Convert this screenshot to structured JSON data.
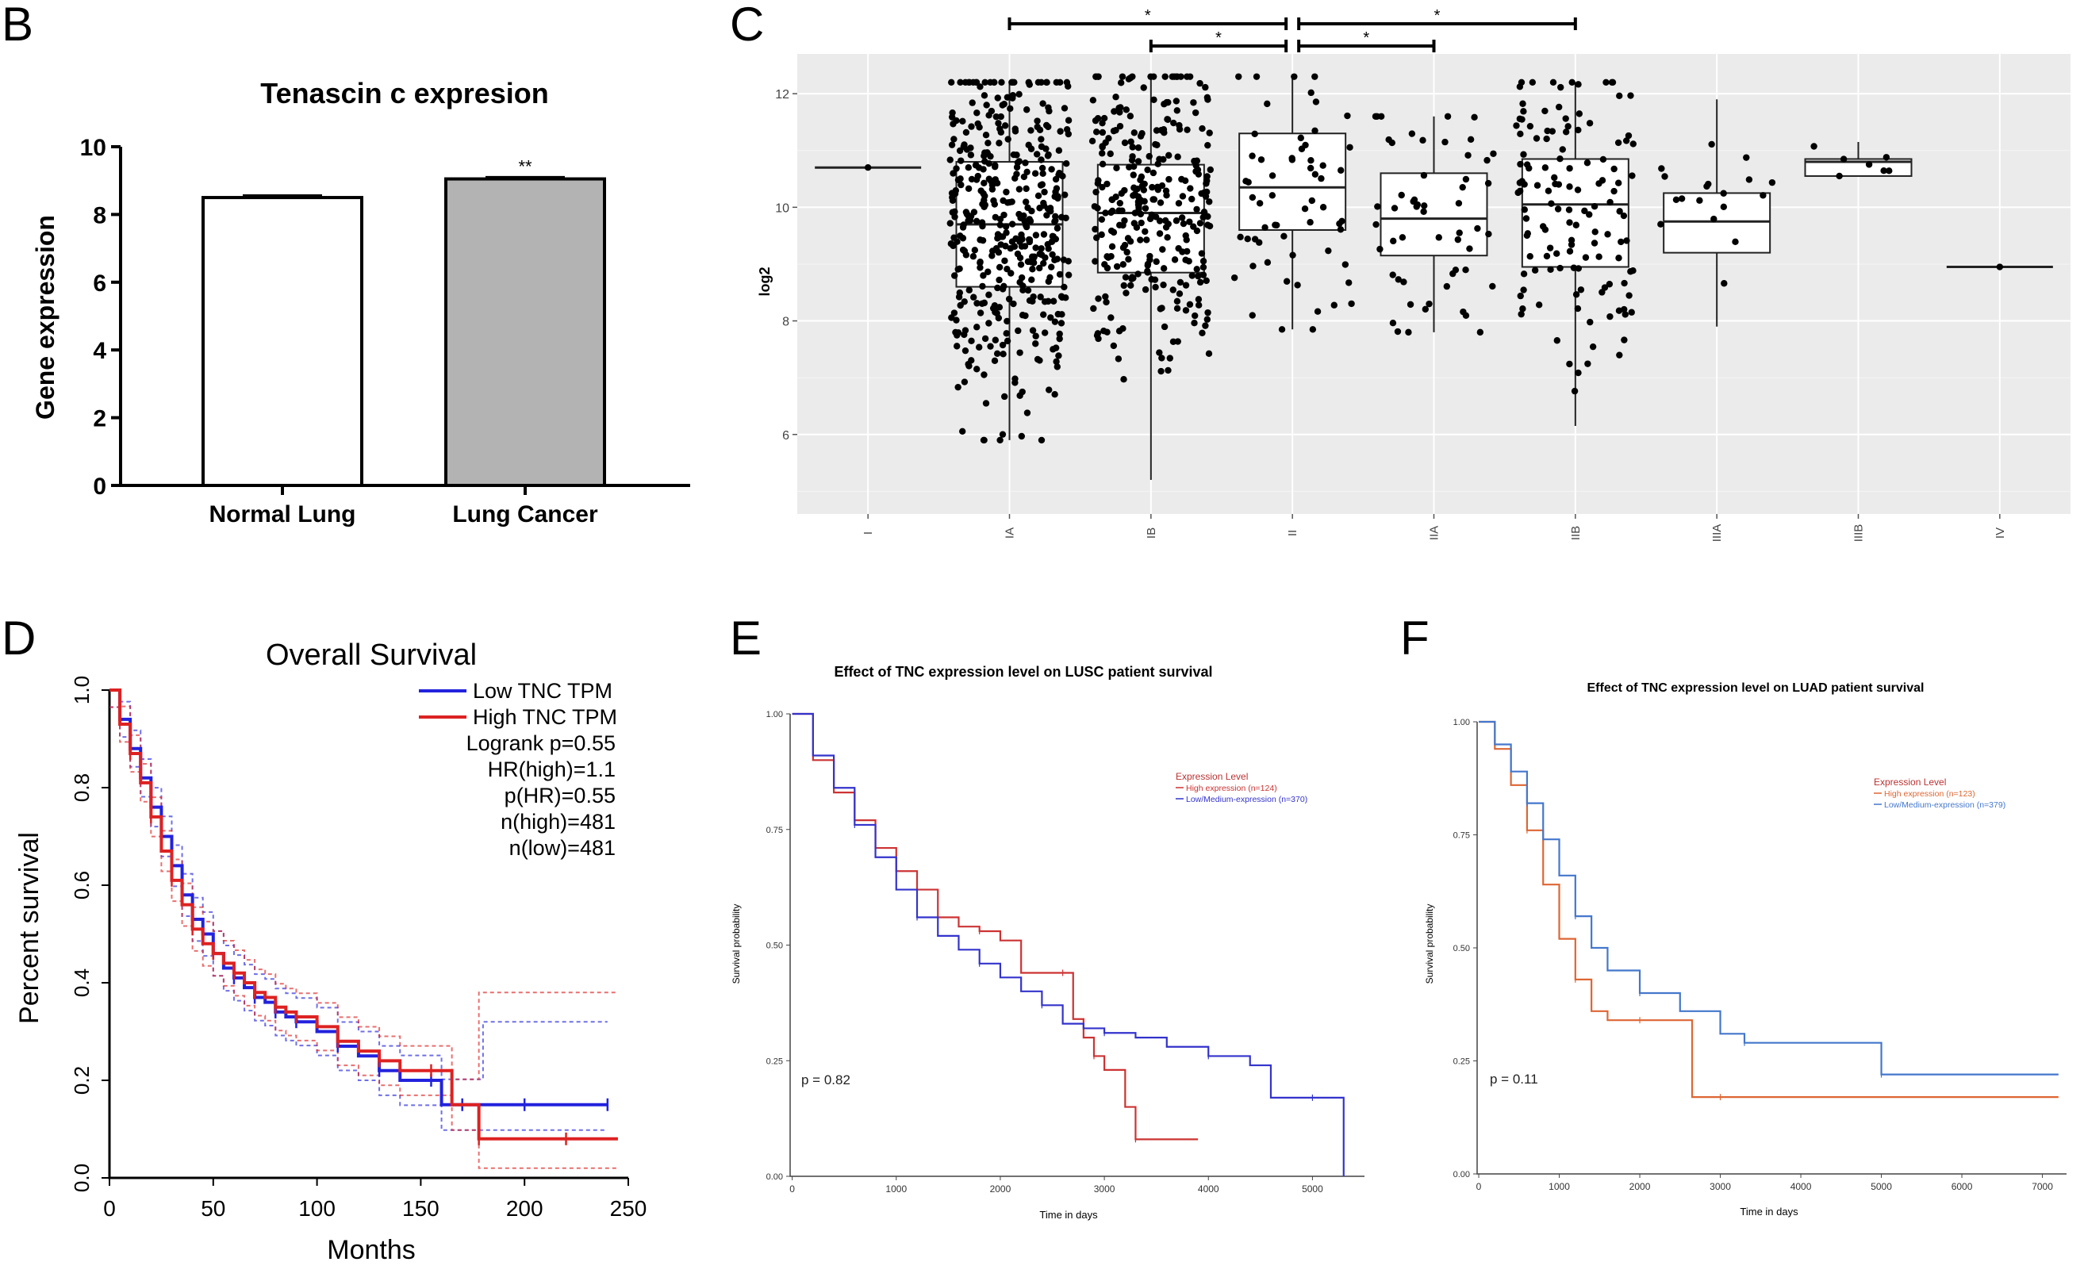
{
  "panel_labels": {
    "B": "B",
    "C": "C",
    "D": "D",
    "E": "E",
    "F": "F"
  },
  "chart_data": [
    {
      "id": "B",
      "type": "bar",
      "title": "Tenascin c expresion",
      "ylabel": "Gene expression",
      "xlabel": "",
      "categories": [
        "Normal Lung",
        "Lung Cancer"
      ],
      "values": [
        8.5,
        9.05
      ],
      "errors": [
        0.06,
        0.05
      ],
      "fills": [
        "#ffffff",
        "#b3b3b3"
      ],
      "annotations": [
        "",
        "**"
      ],
      "yticks": [
        "0",
        "2",
        "4",
        "6",
        "8",
        "10"
      ],
      "ylim": [
        0,
        10
      ]
    },
    {
      "id": "C",
      "type": "box",
      "ylabel": "log2",
      "categories": [
        "I",
        "IA",
        "IB",
        "II",
        "IIA",
        "IIB",
        "IIIA",
        "IIIB",
        "IV"
      ],
      "yticks": [
        "6",
        "8",
        "10",
        "12"
      ],
      "ylim": [
        4.6,
        12.7
      ],
      "boxes": [
        {
          "q1": 10.7,
          "median": 10.7,
          "q3": 10.7,
          "lo": 10.7,
          "hi": 10.7,
          "n": 1
        },
        {
          "q1": 8.6,
          "median": 9.7,
          "q3": 10.8,
          "lo": 5.9,
          "hi": 12.2,
          "n": 420
        },
        {
          "q1": 8.85,
          "median": 9.9,
          "q3": 10.75,
          "lo": 5.2,
          "hi": 12.3,
          "n": 300
        },
        {
          "q1": 9.6,
          "median": 10.35,
          "q3": 11.3,
          "lo": 7.85,
          "hi": 12.3,
          "n": 60
        },
        {
          "q1": 9.15,
          "median": 9.8,
          "q3": 10.6,
          "lo": 7.8,
          "hi": 11.6,
          "n": 55
        },
        {
          "q1": 8.95,
          "median": 10.05,
          "q3": 10.85,
          "lo": 6.15,
          "hi": 12.2,
          "n": 130
        },
        {
          "q1": 9.2,
          "median": 9.75,
          "q3": 10.25,
          "lo": 7.9,
          "hi": 11.9,
          "n": 18
        },
        {
          "q1": 10.55,
          "median": 10.8,
          "q3": 10.85,
          "lo": 10.55,
          "hi": 11.15,
          "n": 7
        },
        {
          "q1": 8.95,
          "median": 8.95,
          "q3": 8.95,
          "lo": 8.95,
          "hi": 8.95,
          "n": 1
        }
      ],
      "significance": [
        {
          "from": "IA",
          "to": "II",
          "label": "*"
        },
        {
          "from": "II",
          "to": "IIB",
          "label": "*"
        },
        {
          "from": "IB",
          "to": "II",
          "label": "*"
        },
        {
          "from": "II",
          "to": "IIA",
          "label": "*"
        }
      ]
    },
    {
      "id": "D",
      "type": "line",
      "title": "Overall Survival",
      "xlabel": "Months",
      "ylabel": "Percent survival",
      "xticks": [
        "0",
        "50",
        "100",
        "150",
        "200",
        "250"
      ],
      "yticks": [
        "0.0",
        "0.2",
        "0.4",
        "0.6",
        "0.8",
        "1.0"
      ],
      "xlim": [
        0,
        250
      ],
      "ylim": [
        0,
        1
      ],
      "legend": [
        "Low TNC TPM",
        "High TNC TPM"
      ],
      "stats": [
        "Logrank p=0.55",
        "HR(high)=1.1",
        "p(HR)=0.55",
        "n(high)=481",
        "n(low)=481"
      ],
      "series": [
        {
          "name": "Low TNC TPM",
          "color": "#2222dd",
          "x": [
            0,
            5,
            10,
            15,
            20,
            25,
            30,
            35,
            40,
            45,
            50,
            55,
            60,
            65,
            70,
            75,
            80,
            85,
            90,
            100,
            110,
            120,
            130,
            140,
            155,
            160,
            170,
            180,
            200,
            220,
            240
          ],
          "y": [
            1.0,
            0.94,
            0.88,
            0.82,
            0.76,
            0.7,
            0.64,
            0.58,
            0.53,
            0.5,
            0.46,
            0.43,
            0.41,
            0.39,
            0.37,
            0.36,
            0.34,
            0.33,
            0.32,
            0.3,
            0.27,
            0.25,
            0.22,
            0.2,
            0.2,
            0.15,
            0.15,
            0.15,
            0.15,
            0.15,
            0.15
          ]
        },
        {
          "name": "High TNC TPM",
          "color": "#dd2222",
          "x": [
            0,
            5,
            10,
            15,
            20,
            25,
            30,
            35,
            40,
            45,
            50,
            55,
            60,
            65,
            70,
            75,
            80,
            85,
            90,
            100,
            110,
            120,
            130,
            140,
            155,
            165,
            178,
            200,
            220,
            245
          ],
          "y": [
            1.0,
            0.93,
            0.87,
            0.81,
            0.74,
            0.67,
            0.61,
            0.56,
            0.51,
            0.48,
            0.46,
            0.44,
            0.42,
            0.4,
            0.38,
            0.37,
            0.35,
            0.34,
            0.33,
            0.31,
            0.28,
            0.26,
            0.24,
            0.22,
            0.22,
            0.15,
            0.08,
            0.08,
            0.08,
            0.08
          ]
        }
      ]
    },
    {
      "id": "E",
      "type": "line",
      "title": "Effect of TNC expression level on LUSC patient survival",
      "xlabel": "Time in days",
      "ylabel": "Survival probability",
      "xticks": [
        "0",
        "1000",
        "2000",
        "3000",
        "4000",
        "5000"
      ],
      "yticks": [
        "0.00",
        "0.25",
        "0.50",
        "0.75",
        "1.00"
      ],
      "xlim": [
        -20,
        5500
      ],
      "ylim": [
        0,
        1
      ],
      "legend_title": "Expression Level",
      "legend": [
        "High expression (n=124)",
        "Low/Medium-expression (n=370)"
      ],
      "pvalue": "p = 0.82",
      "series": [
        {
          "name": "High expression (n=124)",
          "color": "#cc3333",
          "x": [
            0,
            200,
            400,
            600,
            800,
            1000,
            1200,
            1400,
            1600,
            1800,
            2000,
            2200,
            2600,
            2700,
            2800,
            2900,
            3000,
            3200,
            3300,
            3400,
            3500,
            3900
          ],
          "y": [
            1.0,
            0.9,
            0.83,
            0.77,
            0.71,
            0.66,
            0.62,
            0.56,
            0.54,
            0.53,
            0.51,
            0.44,
            0.44,
            0.34,
            0.3,
            0.26,
            0.23,
            0.15,
            0.08,
            0.08,
            0.08,
            0.08
          ]
        },
        {
          "name": "Low/Medium-expression (n=370)",
          "color": "#3333cc",
          "x": [
            0,
            200,
            400,
            600,
            800,
            1000,
            1200,
            1400,
            1600,
            1800,
            2000,
            2200,
            2400,
            2600,
            2800,
            3000,
            3300,
            3600,
            4000,
            4400,
            4600,
            5000,
            5300,
            5300
          ],
          "y": [
            1.0,
            0.91,
            0.84,
            0.76,
            0.69,
            0.62,
            0.56,
            0.52,
            0.49,
            0.46,
            0.43,
            0.4,
            0.37,
            0.33,
            0.32,
            0.31,
            0.3,
            0.28,
            0.26,
            0.24,
            0.17,
            0.17,
            0.17,
            0.0
          ]
        }
      ]
    },
    {
      "id": "F",
      "type": "line",
      "title": "Effect of TNC expression level on LUAD patient survival",
      "xlabel": "Time in days",
      "ylabel": "Survival probability",
      "xticks": [
        "0",
        "1000",
        "2000",
        "3000",
        "4000",
        "5000",
        "6000",
        "7000"
      ],
      "yticks": [
        "0.00",
        "0.25",
        "0.50",
        "0.75",
        "1.00"
      ],
      "xlim": [
        -20,
        7300
      ],
      "ylim": [
        0,
        1
      ],
      "legend_title": "Expression Level",
      "legend": [
        "High expression (n=123)",
        "Low/Medium-expression (n=379)"
      ],
      "pvalue": "p = 0.11",
      "series": [
        {
          "name": "High expression (n=123)",
          "color": "#dd6633",
          "x": [
            0,
            200,
            400,
            600,
            800,
            1000,
            1200,
            1400,
            1600,
            2000,
            2600,
            2650,
            3000,
            5000,
            7200
          ],
          "y": [
            1.0,
            0.94,
            0.86,
            0.76,
            0.64,
            0.52,
            0.43,
            0.36,
            0.34,
            0.34,
            0.34,
            0.17,
            0.17,
            0.17,
            0.17
          ]
        },
        {
          "name": "Low/Medium-expression (n=379)",
          "color": "#4477cc",
          "x": [
            0,
            200,
            400,
            600,
            800,
            1000,
            1200,
            1400,
            1600,
            2000,
            2500,
            3000,
            3300,
            4000,
            4900,
            5000,
            6000,
            7200
          ],
          "y": [
            1.0,
            0.95,
            0.89,
            0.82,
            0.74,
            0.66,
            0.57,
            0.5,
            0.45,
            0.4,
            0.36,
            0.31,
            0.29,
            0.29,
            0.29,
            0.22,
            0.22,
            0.22
          ]
        }
      ]
    }
  ]
}
